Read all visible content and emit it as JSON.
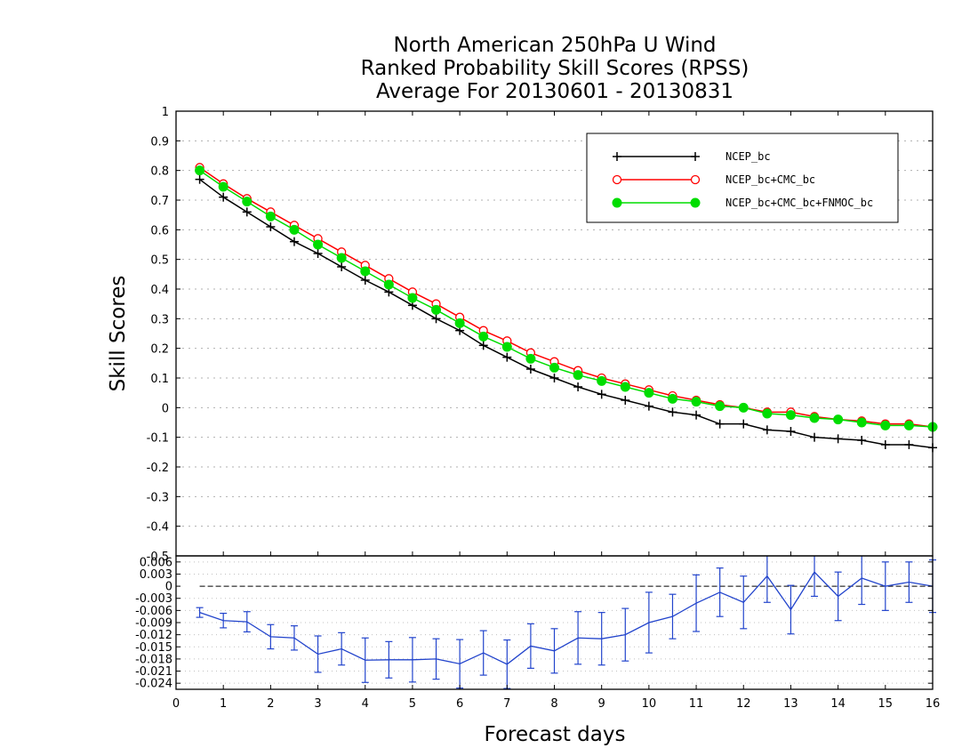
{
  "chart_data": [
    {
      "type": "line",
      "title": [
        "North American 250hPa U Wind",
        "Ranked Probability Skill Scores (RPSS)",
        "Average For 20130601 - 20130831"
      ],
      "xlabel": "Forecast days",
      "ylabel": "Skill Scores",
      "xlim": [
        0,
        16
      ],
      "ylim": [
        -0.5,
        1
      ],
      "grid": true,
      "legend": "top-right",
      "x": [
        0.5,
        1,
        1.5,
        2,
        2.5,
        3,
        3.5,
        4,
        4.5,
        5,
        5.5,
        6,
        6.5,
        7,
        7.5,
        8,
        8.5,
        9,
        9.5,
        10,
        10.5,
        11,
        11.5,
        12,
        12.5,
        13,
        13.5,
        14,
        14.5,
        15,
        15.5,
        16
      ],
      "yticks": [
        "1",
        "0.9",
        "0.8",
        "0.7",
        "0.6",
        "0.5",
        "0.4",
        "0.3",
        "0.2",
        "0.1",
        "0",
        "-0.1",
        "-0.2",
        "-0.3",
        "-0.4",
        "-0.5"
      ],
      "xticks": [
        "0",
        "1",
        "2",
        "3",
        "4",
        "5",
        "6",
        "7",
        "8",
        "9",
        "10",
        "11",
        "12",
        "13",
        "14",
        "15",
        "16"
      ],
      "series": [
        {
          "name": "NCEP_bc",
          "color": "#000000",
          "marker": "plus",
          "values": [
            0.77,
            0.71,
            0.66,
            0.61,
            0.56,
            0.52,
            0.475,
            0.43,
            0.39,
            0.345,
            0.3,
            0.26,
            0.21,
            0.17,
            0.13,
            0.1,
            0.07,
            0.045,
            0.025,
            0.005,
            -0.015,
            -0.025,
            -0.055,
            -0.055,
            -0.075,
            -0.08,
            -0.1,
            -0.105,
            -0.11,
            -0.125,
            -0.125,
            -0.135
          ]
        },
        {
          "name": "NCEP_bc+CMC_bc",
          "color": "#ff0000",
          "marker": "open-circle",
          "values": [
            0.81,
            0.755,
            0.705,
            0.66,
            0.615,
            0.57,
            0.525,
            0.48,
            0.435,
            0.39,
            0.35,
            0.305,
            0.26,
            0.225,
            0.185,
            0.155,
            0.125,
            0.1,
            0.08,
            0.06,
            0.04,
            0.025,
            0.01,
            0.0,
            -0.015,
            -0.015,
            -0.03,
            -0.04,
            -0.045,
            -0.055,
            -0.055,
            -0.065
          ]
        },
        {
          "name": "NCEP_bc+CMC_bc+FNMOC_bc",
          "color": "#00dd00",
          "marker": "filled-circle",
          "values": [
            0.8,
            0.745,
            0.695,
            0.645,
            0.6,
            0.55,
            0.505,
            0.46,
            0.415,
            0.37,
            0.33,
            0.285,
            0.24,
            0.205,
            0.165,
            0.135,
            0.11,
            0.09,
            0.07,
            0.05,
            0.03,
            0.02,
            0.005,
            0.0,
            -0.02,
            -0.025,
            -0.035,
            -0.04,
            -0.05,
            -0.06,
            -0.06,
            -0.065
          ]
        }
      ]
    },
    {
      "type": "line",
      "xlim": [
        0,
        16
      ],
      "ylim": [
        -0.0255,
        0.0075
      ],
      "yticks": [
        "0.006",
        "0.003",
        "0",
        "-0.003",
        "-0.006",
        "-0.009",
        "-0.012",
        "-0.015",
        "-0.018",
        "-0.021",
        "-0.024"
      ],
      "series": [
        {
          "color": "#2244cc",
          "x": [
            0.5,
            1,
            1.5,
            2,
            2.5,
            3,
            3.5,
            4,
            4.5,
            5,
            5.5,
            6,
            6.5,
            7,
            7.5,
            8,
            8.5,
            9,
            9.5,
            10,
            10.5,
            11,
            11.5,
            12,
            12.5,
            13,
            13.5,
            14,
            14.5,
            15,
            15.5,
            16
          ],
          "values": [
            -0.0065,
            -0.0085,
            -0.0088,
            -0.0125,
            -0.0128,
            -0.0168,
            -0.0155,
            -0.0183,
            -0.0182,
            -0.0182,
            -0.018,
            -0.0192,
            -0.0165,
            -0.0193,
            -0.0148,
            -0.016,
            -0.0128,
            -0.013,
            -0.012,
            -0.009,
            -0.0075,
            -0.0042,
            -0.0015,
            -0.004,
            0.0025,
            -0.0058,
            0.0035,
            -0.0025,
            0.002,
            0.0,
            0.001,
            0.0
          ],
          "error": [
            0.0012,
            0.0018,
            0.0025,
            0.003,
            0.003,
            0.0045,
            0.004,
            0.0055,
            0.0045,
            0.0055,
            0.005,
            0.006,
            0.0055,
            0.006,
            0.0055,
            0.0055,
            0.0065,
            0.0065,
            0.0065,
            0.0075,
            0.0055,
            0.007,
            0.006,
            0.0065,
            0.0065,
            0.006,
            0.006,
            0.006,
            0.0065,
            0.006,
            0.005,
            0.0065
          ]
        }
      ]
    }
  ]
}
